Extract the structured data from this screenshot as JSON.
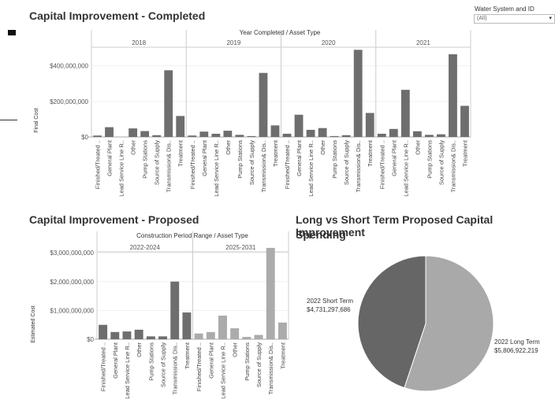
{
  "completed": {
    "title": "Capital Improvement - Completed",
    "header": "Year Completed / Asset Type",
    "ylabel": "Final Cost"
  },
  "proposed": {
    "title": "Capital Improvement - Proposed",
    "header": "Construction Period Range / Asset Type",
    "ylabel": "Estimated Cost"
  },
  "pie": {
    "title_line1": "Long vs Short Term Proposed Capital Improvement",
    "title_line2": "Spending",
    "short_label": "2022 Short Term",
    "short_value": "$4,731,297,686",
    "long_label": "2022 Long Term",
    "long_value": "$5,806,922,219"
  },
  "filter": {
    "label": "Water System and ID",
    "value": "(All)"
  },
  "colors": {
    "dark_bar": "#6e6e6e",
    "light_bar": "#ababab",
    "pie_short": "#666666",
    "pie_long": "#a9a9a9"
  },
  "chart_data": [
    {
      "type": "bar",
      "title": "Capital Improvement - Completed",
      "header": "Year Completed / Asset Type",
      "ylabel": "Final Cost",
      "ylim": [
        0,
        540000000
      ],
      "yticks": [
        0,
        200000000,
        400000000
      ],
      "ytick_labels": [
        "$0",
        "$200,000,000",
        "$400,000,000"
      ],
      "categories": [
        "Finished/Treated ..",
        "General Plant",
        "Lead Service Line R..",
        "Other",
        "Pump Stations",
        "Source of Supply",
        "Transmission& Dis..",
        "Treatment"
      ],
      "series": [
        {
          "name": "2018",
          "values": [
            8000000,
            55000000,
            0,
            48000000,
            33000000,
            10000000,
            375000000,
            118000000
          ]
        },
        {
          "name": "2019",
          "values": [
            8000000,
            30000000,
            18000000,
            35000000,
            12000000,
            5000000,
            360000000,
            65000000
          ]
        },
        {
          "name": "2020",
          "values": [
            18000000,
            125000000,
            40000000,
            50000000,
            5000000,
            10000000,
            490000000,
            135000000
          ]
        },
        {
          "name": "2021",
          "values": [
            18000000,
            45000000,
            265000000,
            32000000,
            12000000,
            15000000,
            465000000,
            175000000
          ]
        }
      ],
      "grid": false
    },
    {
      "type": "bar",
      "title": "Capital Improvement - Proposed",
      "header": "Construction Period Range / Asset Type",
      "ylabel": "Estimated Cost",
      "ylim": [
        0,
        3250000000
      ],
      "yticks": [
        0,
        1000000000,
        2000000000,
        3000000000
      ],
      "ytick_labels": [
        "$0",
        "$1,000,000,000",
        "$2,000,000,000",
        "$3,000,000,000"
      ],
      "categories": [
        "Finished/Treated ..",
        "General Plant",
        "Lead Service Line R..",
        "Other",
        "Pump Stations",
        "Source of Supply",
        "Transmission& Dis..",
        "Treatment"
      ],
      "series": [
        {
          "name": "2022-2024",
          "values": [
            500000000,
            250000000,
            270000000,
            330000000,
            100000000,
            100000000,
            2000000000,
            930000000
          ]
        },
        {
          "name": "2025-2031",
          "values": [
            200000000,
            250000000,
            820000000,
            380000000,
            80000000,
            150000000,
            3170000000,
            580000000
          ]
        }
      ],
      "grid": false
    },
    {
      "type": "pie",
      "title": "Long vs Short Term Proposed Capital Improvement Spending",
      "labels": [
        "2022 Short Term",
        "2022 Long Term"
      ],
      "values": [
        4731297686,
        5806922219
      ]
    }
  ]
}
